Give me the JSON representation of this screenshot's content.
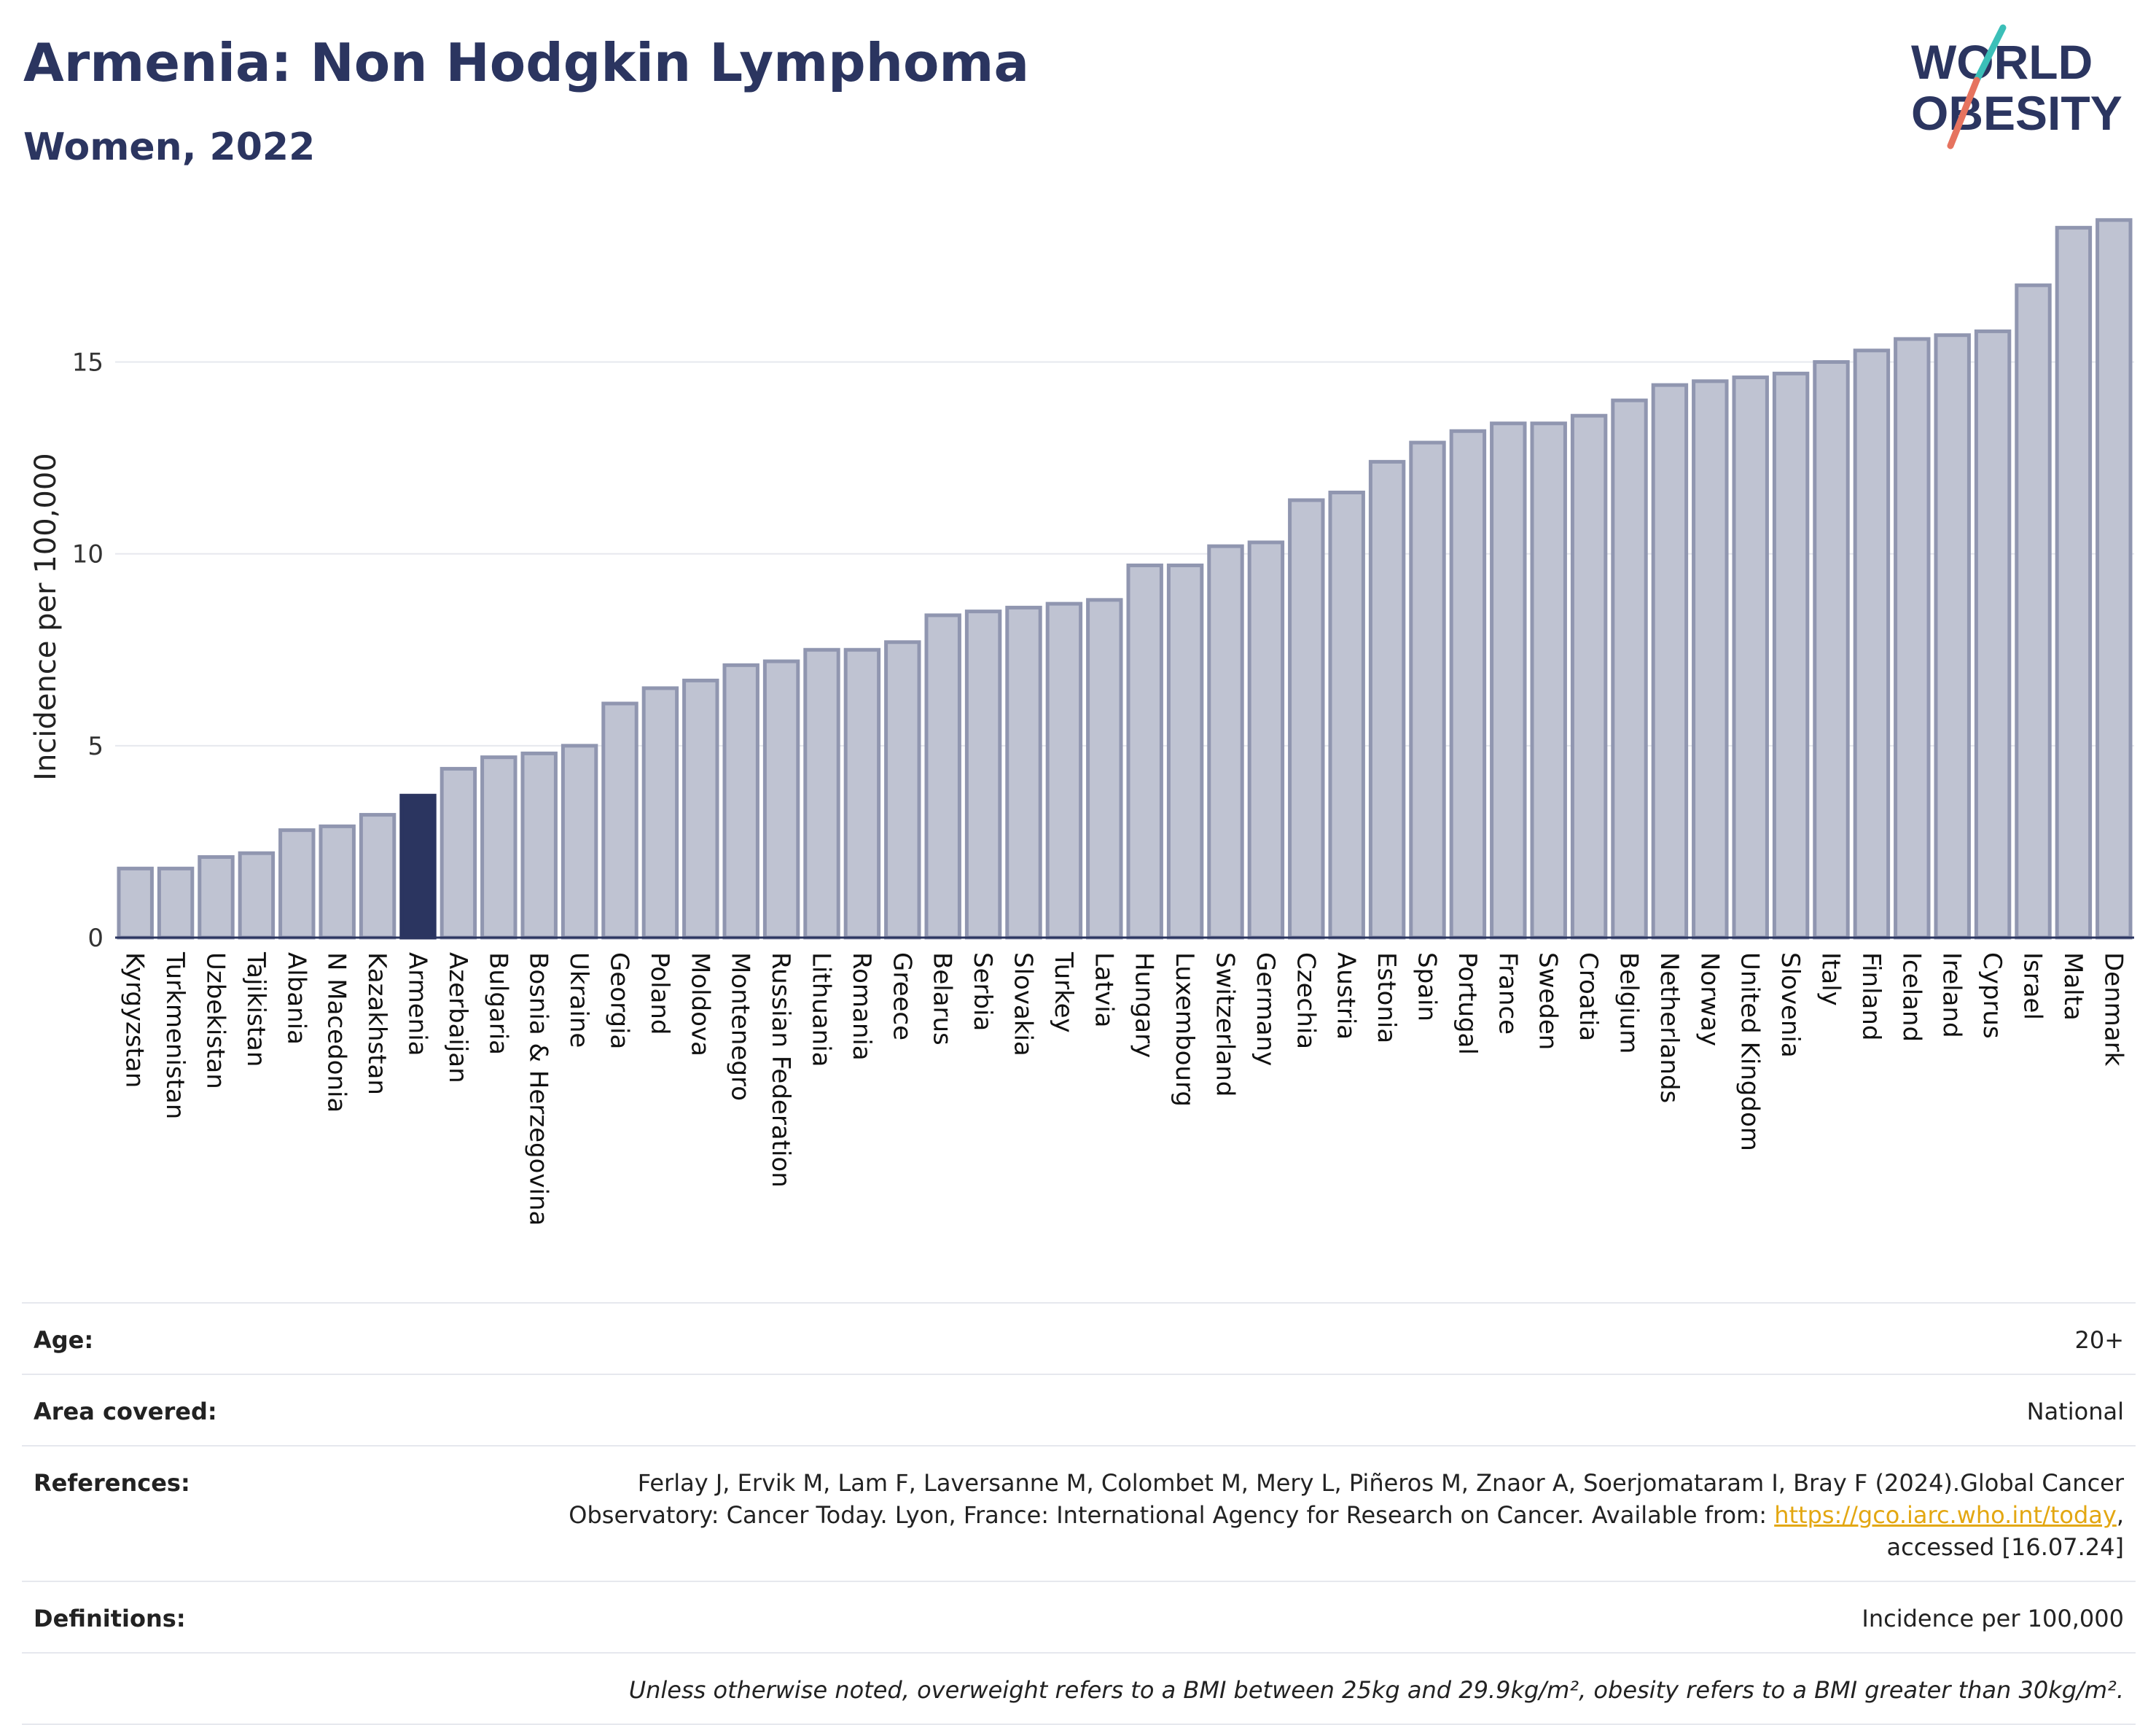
{
  "header": {
    "title": "Armenia: Non Hodgkin Lymphoma",
    "subtitle": "Women, 2022",
    "logo_line1": "WORLD",
    "logo_line2": "OBESITY"
  },
  "chart_data": {
    "type": "bar",
    "title": "Armenia: Non Hodgkin Lymphoma",
    "subtitle": "Women, 2022",
    "ylabel": "Incidence per 100,000",
    "xlabel": "",
    "ylim": [
      0,
      19
    ],
    "yticks": [
      0,
      5,
      10,
      15
    ],
    "grid": true,
    "highlight": "Armenia",
    "colors": {
      "bar": "#bfc3d2",
      "bar_edge": "#9096b0",
      "highlight": "#2b3560",
      "grid": "#e6e8ee"
    },
    "categories": [
      "Kyrgyzstan",
      "Turkmenistan",
      "Uzbekistan",
      "Tajikistan",
      "Albania",
      "N Macedonia",
      "Kazakhstan",
      "Armenia",
      "Azerbaijan",
      "Bulgaria",
      "Bosnia & Herzegovina",
      "Ukraine",
      "Georgia",
      "Poland",
      "Moldova",
      "Montenegro",
      "Russian Federation",
      "Lithuania",
      "Romania",
      "Greece",
      "Belarus",
      "Serbia",
      "Slovakia",
      "Turkey",
      "Latvia",
      "Hungary",
      "Luxembourg",
      "Switzerland",
      "Germany",
      "Czechia",
      "Austria",
      "Estonia",
      "Spain",
      "Portugal",
      "France",
      "Sweden",
      "Croatia",
      "Belgium",
      "Netherlands",
      "Norway",
      "United Kingdom",
      "Slovenia",
      "Italy",
      "Finland",
      "Iceland",
      "Ireland",
      "Cyprus",
      "Israel",
      "Malta",
      "Denmark"
    ],
    "values": [
      1.8,
      1.8,
      2.1,
      2.2,
      2.8,
      2.9,
      3.2,
      3.7,
      4.4,
      4.7,
      4.8,
      5.0,
      6.1,
      6.5,
      6.7,
      7.1,
      7.2,
      7.5,
      7.5,
      7.7,
      8.4,
      8.5,
      8.6,
      8.7,
      8.8,
      9.7,
      9.7,
      10.2,
      10.3,
      11.4,
      11.6,
      12.4,
      12.9,
      13.2,
      13.4,
      13.4,
      13.6,
      14.0,
      14.4,
      14.5,
      14.6,
      14.7,
      15.0,
      15.3,
      15.6,
      15.7,
      15.8,
      17.0,
      18.5,
      18.7
    ]
  },
  "meta": {
    "age_label": "Age:",
    "age_value": "20+",
    "area_label": "Area covered:",
    "area_value": "National",
    "references_label": "References:",
    "references_text": "Ferlay J, Ervik M, Lam F, Laversanne M, Colombet M, Mery L, Piñeros M, Znaor A, Soerjomataram I, Bray F (2024).Global Cancer Observatory: Cancer Today. Lyon, France: International Agency for Research on Cancer. Available from: ",
    "references_link": "https://gco.iarc.who.int/today",
    "references_tail": ", accessed [16.07.24]",
    "definitions_label": "Definitions:",
    "definitions_value": "Incidence per 100,000",
    "note": "Unless otherwise noted, overweight refers to a BMI between 25kg and 29.9kg/m², obesity refers to a BMI greater than 30kg/m²."
  }
}
